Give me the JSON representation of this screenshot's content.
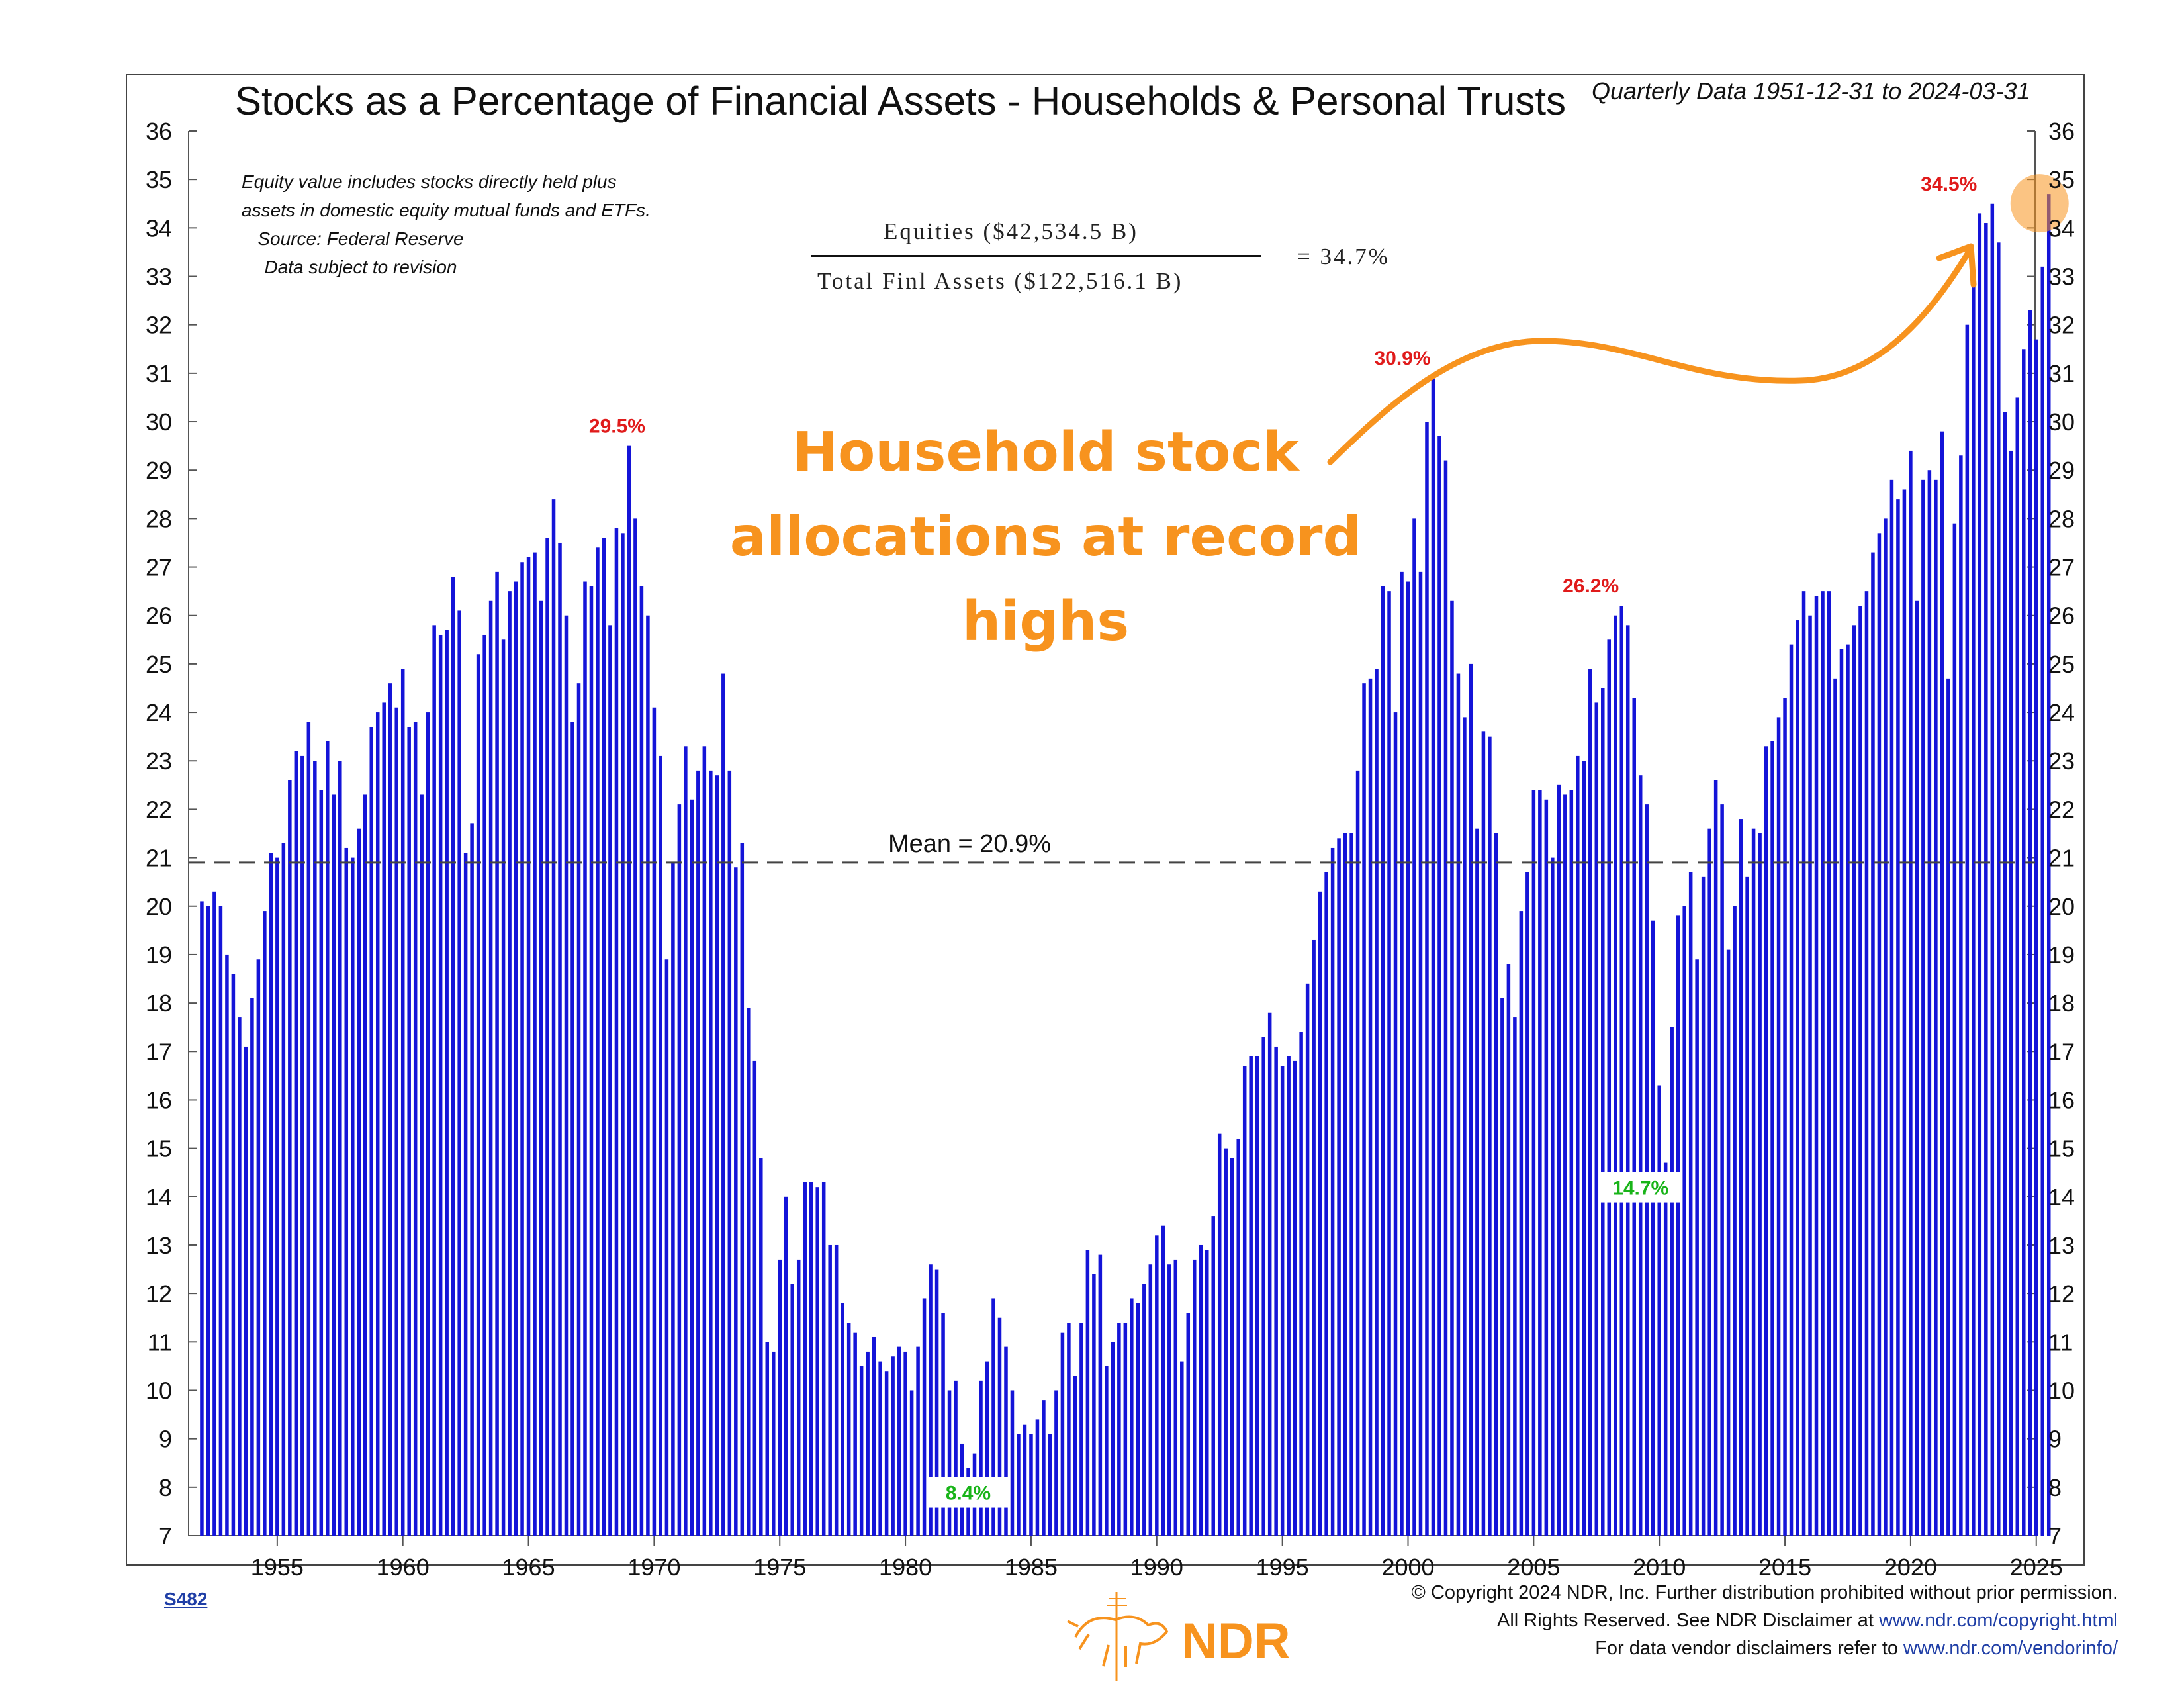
{
  "chart_data": {
    "type": "bar",
    "title": "Stocks as a Percentage of Financial Assets - Households & Personal Trusts",
    "subtitle": "Quarterly Data 1951-12-31 to 2024-03-31",
    "frequency": "quarterly",
    "start": "1951-12-31",
    "end": "2024-03-31",
    "ylim": [
      7,
      36
    ],
    "y_ticks": [
      "7",
      "8",
      "9",
      "10",
      "11",
      "12",
      "13",
      "14",
      "15",
      "16",
      "17",
      "18",
      "19",
      "20",
      "21",
      "22",
      "23",
      "24",
      "25",
      "26",
      "27",
      "28",
      "29",
      "30",
      "31",
      "32",
      "33",
      "34",
      "35",
      "36"
    ],
    "x_ticks": [
      "1955",
      "1960",
      "1965",
      "1970",
      "1975",
      "1980",
      "1985",
      "1990",
      "1995",
      "2000",
      "2005",
      "2010",
      "2015",
      "2020",
      "2025"
    ],
    "bar_color": "#1414d8",
    "mean": {
      "value": 20.9,
      "label": "Mean = 20.9%"
    },
    "annotations": [
      {
        "label": "29.5%",
        "value": 29.5,
        "date": "1968-12-31",
        "color": "#e01b1b",
        "kind": "high"
      },
      {
        "label": "8.4%",
        "value": 8.4,
        "date": "1982-06-30",
        "color": "#19b419",
        "kind": "low"
      },
      {
        "label": "30.9%",
        "value": 30.9,
        "date": "2000-03-31",
        "color": "#e01b1b",
        "kind": "high"
      },
      {
        "label": "26.2%",
        "value": 26.2,
        "date": "2007-09-30",
        "color": "#e01b1b",
        "kind": "high"
      },
      {
        "label": "14.7%",
        "value": 14.7,
        "date": "2009-03-31",
        "color": "#19b419",
        "kind": "low"
      },
      {
        "label": "34.5%",
        "value": 34.5,
        "date": "2021-12-31",
        "color": "#e01b1b",
        "kind": "high"
      }
    ],
    "values": [
      20.1,
      20.0,
      20.3,
      20.0,
      19.0,
      18.6,
      17.7,
      17.1,
      18.1,
      18.9,
      19.9,
      21.1,
      21.0,
      21.3,
      22.6,
      23.2,
      23.1,
      23.8,
      23.0,
      22.4,
      23.4,
      22.3,
      23.0,
      21.2,
      21.0,
      21.6,
      22.3,
      23.7,
      24.0,
      24.2,
      24.6,
      24.1,
      24.9,
      23.7,
      23.8,
      22.3,
      24.0,
      25.8,
      25.6,
      25.7,
      26.8,
      26.1,
      21.1,
      21.7,
      25.2,
      25.6,
      26.3,
      26.9,
      25.5,
      26.5,
      26.7,
      27.1,
      27.2,
      27.3,
      26.3,
      27.6,
      28.4,
      27.5,
      26.0,
      23.8,
      24.6,
      26.7,
      26.6,
      27.4,
      27.6,
      25.8,
      27.8,
      27.7,
      29.5,
      28.0,
      26.6,
      26.0,
      24.1,
      23.1,
      18.9,
      20.9,
      22.1,
      23.3,
      22.2,
      22.8,
      23.3,
      22.8,
      22.7,
      24.8,
      22.8,
      20.8,
      21.3,
      17.9,
      16.8,
      14.8,
      11.0,
      10.8,
      12.7,
      14.0,
      12.2,
      12.7,
      14.3,
      14.3,
      14.2,
      14.3,
      13.0,
      13.0,
      11.8,
      11.4,
      11.2,
      10.5,
      10.8,
      11.1,
      10.6,
      10.4,
      10.7,
      10.9,
      10.8,
      10.0,
      10.9,
      11.9,
      12.6,
      12.5,
      11.6,
      10.0,
      10.2,
      8.9,
      8.4,
      8.7,
      10.2,
      10.6,
      11.9,
      11.5,
      10.9,
      10.0,
      9.1,
      9.3,
      9.1,
      9.4,
      9.8,
      9.1,
      10.0,
      11.2,
      11.4,
      10.3,
      11.4,
      12.9,
      12.4,
      12.8,
      10.5,
      11.0,
      11.4,
      11.4,
      11.9,
      11.8,
      12.2,
      12.6,
      13.2,
      13.4,
      12.6,
      12.7,
      10.6,
      11.6,
      12.7,
      13.0,
      12.9,
      13.6,
      15.3,
      15.0,
      14.8,
      15.2,
      16.7,
      16.9,
      16.9,
      17.3,
      17.8,
      17.1,
      16.7,
      16.9,
      16.8,
      17.4,
      18.4,
      19.3,
      20.3,
      20.7,
      21.2,
      21.4,
      21.5,
      21.5,
      22.8,
      24.6,
      24.7,
      24.9,
      26.6,
      26.5,
      24.0,
      26.9,
      26.7,
      28.0,
      26.9,
      30.0,
      30.9,
      29.7,
      29.2,
      26.3,
      24.8,
      23.9,
      25.0,
      21.6,
      23.6,
      23.5,
      21.5,
      18.1,
      18.8,
      17.7,
      19.9,
      20.7,
      22.4,
      22.4,
      22.2,
      21.0,
      22.5,
      22.3,
      22.4,
      23.1,
      23.0,
      24.9,
      24.2,
      24.5,
      25.5,
      26.0,
      26.2,
      25.8,
      24.3,
      22.7,
      22.1,
      19.7,
      16.3,
      14.7,
      17.5,
      19.8,
      20.0,
      20.7,
      18.9,
      20.6,
      21.6,
      22.6,
      22.1,
      19.1,
      20.0,
      21.8,
      20.6,
      21.6,
      21.5,
      23.3,
      23.4,
      23.9,
      24.3,
      25.4,
      25.9,
      26.5,
      26.0,
      26.4,
      26.5,
      26.5,
      24.7,
      25.3,
      25.4,
      25.8,
      26.2,
      26.5,
      27.3,
      27.7,
      28.0,
      28.8,
      28.4,
      28.6,
      29.4,
      26.3,
      28.8,
      29.0,
      28.8,
      29.8,
      24.7,
      27.9,
      29.3,
      32.0,
      33.1,
      34.3,
      34.1,
      34.5,
      33.7,
      30.2,
      29.4,
      30.5,
      31.5,
      32.3,
      31.7,
      33.2,
      34.7
    ]
  },
  "header": {
    "note_lines": [
      "Equity value includes stocks directly held plus",
      "assets in domestic equity mutual funds and ETFs.",
      "Source: Federal Reserve",
      "Data subject to revision"
    ]
  },
  "formula": {
    "numerator": "Equities ($42,534.5 B)",
    "denominator": "Total Finl Assets ($122,516.1 B)",
    "result": "=  34.7%"
  },
  "callout": {
    "lines": [
      "Household stock",
      "allocations at record",
      "highs"
    ],
    "color": "#f7931e"
  },
  "footer": {
    "chart_code": "S482",
    "logo_text": "NDR",
    "copyright_1": "© Copyright 2024 NDR, Inc. Further distribution prohibited without prior permission.",
    "copyright_2a": "All Rights Reserved. See NDR Disclaimer at ",
    "copyright_2b": "www.ndr.com/copyright.html",
    "copyright_3a": "For data vendor disclaimers refer to ",
    "copyright_3b": "www.ndr.com/vendorinfo/"
  }
}
